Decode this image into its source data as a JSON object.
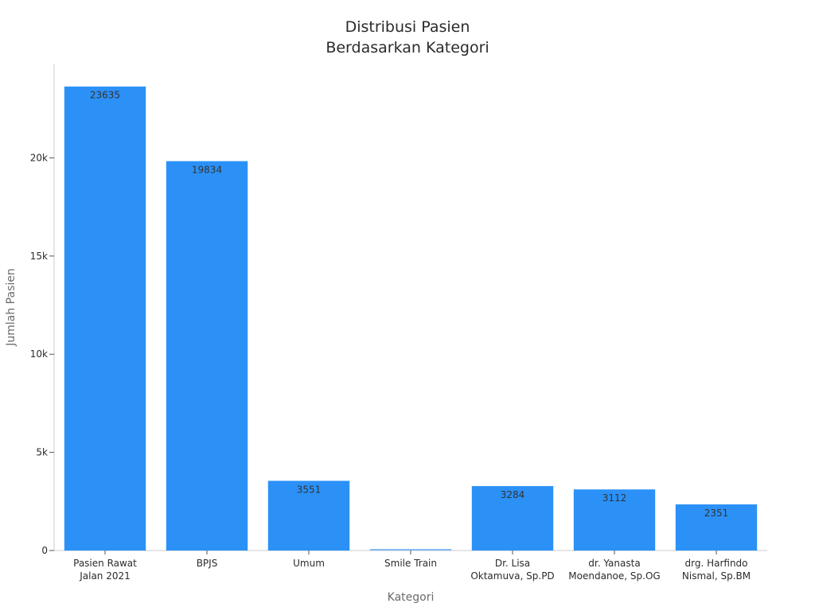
{
  "chart_data": {
    "type": "bar",
    "title_lines": [
      "Distribusi Pasien",
      "Berdasarkan Kategori"
    ],
    "xlabel": "Kategori",
    "ylabel": "Jumlah Pasien",
    "categories": [
      [
        "Pasien Rawat",
        "Jalan 2021"
      ],
      [
        "BPJS"
      ],
      [
        "Umum"
      ],
      [
        "Smile Train"
      ],
      [
        "Dr. Lisa",
        "Oktamuva, Sp.PD"
      ],
      [
        "dr. Yanasta",
        "Moendanoe, Sp.OG"
      ],
      [
        "drg. Harfindo",
        "Nismal, Sp.BM"
      ]
    ],
    "values": [
      23635,
      19834,
      3551,
      80,
      3284,
      3112,
      2351
    ],
    "value_labels": [
      "23635",
      "19834",
      "3551",
      "",
      "3284",
      "3112",
      "2351"
    ],
    "ylim": [
      0,
      24800
    ],
    "yticks": [
      0,
      5000,
      10000,
      15000,
      20000
    ],
    "ytick_labels": [
      "0",
      "5k",
      "10k",
      "15k",
      "20k"
    ],
    "grid": false,
    "colors": {
      "bar": "#2b91f7",
      "bar_light": "#7fb8f5",
      "text": "#2b2b2b"
    }
  }
}
